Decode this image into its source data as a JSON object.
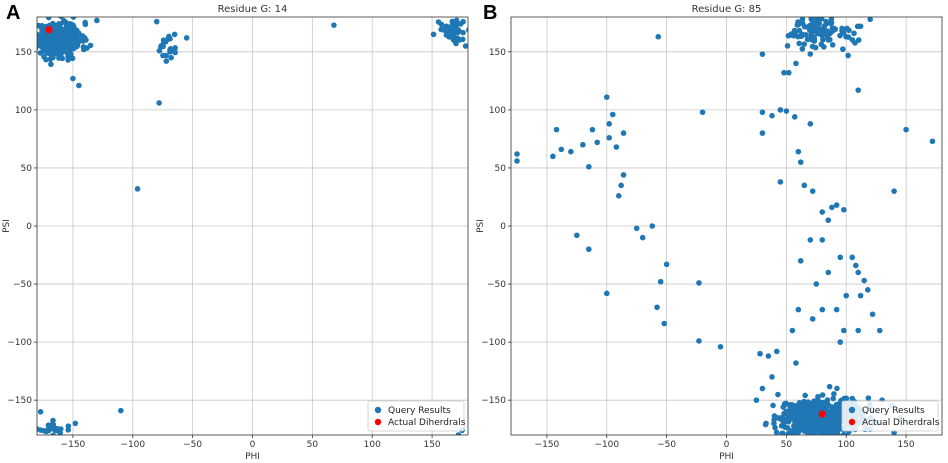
{
  "panels": [
    {
      "letter": "A"
    },
    {
      "letter": "B"
    }
  ],
  "chart_data": [
    {
      "type": "scatter",
      "title": "Residue G: 14",
      "xlabel": "PHI",
      "ylabel": "PSI",
      "xlim": [
        -180,
        180
      ],
      "ylim": [
        -180,
        180
      ],
      "xticks": [
        -150,
        -100,
        -50,
        0,
        50,
        100,
        150
      ],
      "yticks": [
        150,
        100,
        50,
        0,
        -50,
        -100,
        -150
      ],
      "grid": true,
      "legend": {
        "position": "lower-right",
        "entries": [
          "Query Results",
          "Actual Diherdrals"
        ]
      },
      "series": [
        {
          "name": "Query Results",
          "color": "#1f77b4",
          "clusters": [
            {
              "cx": -162,
              "cy": 161,
              "rx": 16,
              "ry": 12,
              "n": 420
            },
            {
              "cx": 167,
              "cy": 169,
              "rx": 10,
              "ry": 9,
              "n": 45
            },
            {
              "cx": -70,
              "cy": 155,
              "rx": 6,
              "ry": 10,
              "n": 20
            },
            {
              "cx": -168,
              "cy": -175,
              "rx": 10,
              "ry": 4,
              "n": 25
            }
          ],
          "points": [
            [
              -130,
              177
            ],
            [
              -80,
              176
            ],
            [
              68,
              173
            ],
            [
              -150,
              127
            ],
            [
              -145,
              121
            ],
            [
              -78,
              106
            ],
            [
              -96,
              32
            ],
            [
              -110,
              -159
            ],
            [
              -148,
              -170
            ],
            [
              -177,
              -160
            ],
            [
              -65,
              165
            ],
            [
              -55,
              162
            ],
            [
              -68,
              145
            ],
            [
              -72,
              142
            ],
            [
              175,
              -176
            ],
            [
              172,
              -180
            ],
            [
              178,
              155
            ],
            [
              162,
              172
            ]
          ]
        },
        {
          "name": "Actual Diherdrals",
          "color": "#ff0000",
          "points": [
            [
              -170,
              169
            ]
          ]
        }
      ]
    },
    {
      "type": "scatter",
      "title": "Residue G: 85",
      "xlabel": "PHI",
      "ylabel": "PSI",
      "xlim": [
        -180,
        180
      ],
      "ylim": [
        -180,
        180
      ],
      "xticks": [
        -150,
        -100,
        -50,
        0,
        50,
        100,
        150
      ],
      "yticks": [
        150,
        100,
        50,
        0,
        -50,
        -100,
        -150
      ],
      "grid": true,
      "legend": {
        "position": "lower-right",
        "entries": [
          "Query Results",
          "Actual Diherdrals"
        ]
      },
      "series": [
        {
          "name": "Query Results",
          "color": "#1f77b4",
          "clusters": [
            {
              "cx": 78,
              "cy": -165,
              "rx": 28,
              "ry": 13,
              "n": 700
            },
            {
              "cx": 78,
              "cy": 167,
              "rx": 20,
              "ry": 12,
              "n": 110
            }
          ],
          "points": [
            [
              -175,
              62
            ],
            [
              -175,
              56
            ],
            [
              -142,
              83
            ],
            [
              -145,
              60
            ],
            [
              -138,
              66
            ],
            [
              -130,
              64
            ],
            [
              -120,
              70
            ],
            [
              -115,
              51
            ],
            [
              -112,
              83
            ],
            [
              -108,
              72
            ],
            [
              -100,
              111
            ],
            [
              -98,
              88
            ],
            [
              -95,
              96
            ],
            [
              -98,
              76
            ],
            [
              -92,
              68
            ],
            [
              -86,
              80
            ],
            [
              -86,
              44
            ],
            [
              -88,
              35
            ],
            [
              -90,
              26
            ],
            [
              -125,
              -8
            ],
            [
              -115,
              -20
            ],
            [
              -100,
              -58
            ],
            [
              -75,
              -2
            ],
            [
              -70,
              -10
            ],
            [
              -62,
              0
            ],
            [
              -57,
              163
            ],
            [
              -55,
              -48
            ],
            [
              -58,
              -70
            ],
            [
              -52,
              -84
            ],
            [
              -50,
              -33
            ],
            [
              -23,
              -49
            ],
            [
              -23,
              -99
            ],
            [
              -20,
              98
            ],
            [
              -5,
              -104
            ],
            [
              30,
              98
            ],
            [
              30,
              80
            ],
            [
              38,
              95
            ],
            [
              45,
              100
            ],
            [
              50,
              99
            ],
            [
              57,
              94
            ],
            [
              60,
              64
            ],
            [
              62,
              55
            ],
            [
              65,
              35
            ],
            [
              45,
              38
            ],
            [
              70,
              88
            ],
            [
              72,
              30
            ],
            [
              80,
              12
            ],
            [
              85,
              5
            ],
            [
              88,
              16
            ],
            [
              92,
              18
            ],
            [
              98,
              14
            ],
            [
              110,
              117
            ],
            [
              110,
              -40
            ],
            [
              115,
              -47
            ],
            [
              140,
              30
            ],
            [
              150,
              83
            ],
            [
              172,
              73
            ],
            [
              80,
              -12
            ],
            [
              62,
              -30
            ],
            [
              70,
              -12
            ],
            [
              85,
              -40
            ],
            [
              95,
              -27
            ],
            [
              105,
              -27
            ],
            [
              108,
              -34
            ],
            [
              112,
              -60
            ],
            [
              118,
              -55
            ],
            [
              75,
              -50
            ],
            [
              72,
              -80
            ],
            [
              80,
              -72
            ],
            [
              92,
              -72
            ],
            [
              98,
              -90
            ],
            [
              100,
              -60
            ],
            [
              122,
              -76
            ],
            [
              128,
              -90
            ],
            [
              110,
              -90
            ],
            [
              95,
              -100
            ],
            [
              60,
              -72
            ],
            [
              55,
              -90
            ],
            [
              58,
              -118
            ],
            [
              42,
              -108
            ],
            [
              28,
              -110
            ],
            [
              35,
              -112
            ],
            [
              130,
              -150
            ],
            [
              120,
              -175
            ],
            [
              140,
              -178
            ],
            [
              145,
              -165
            ],
            [
              138,
              -155
            ],
            [
              30,
              -140
            ],
            [
              25,
              -150
            ],
            [
              38,
              -130
            ],
            [
              48,
              132
            ],
            [
              52,
              132
            ],
            [
              30,
              148
            ],
            [
              58,
              140
            ],
            [
              112,
              172
            ],
            [
              120,
              178
            ]
          ]
        },
        {
          "name": "Actual Diherdrals",
          "color": "#ff0000",
          "points": [
            [
              80,
              -162
            ]
          ]
        }
      ]
    }
  ]
}
